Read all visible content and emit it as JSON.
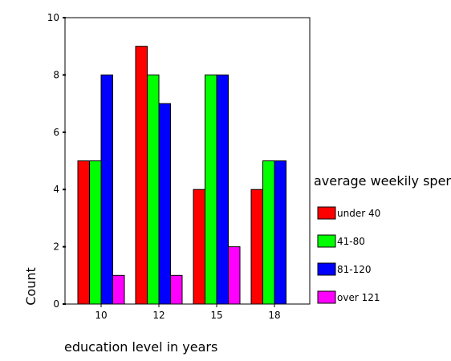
{
  "chart_data": {
    "type": "bar",
    "categories": [
      "10",
      "12",
      "15",
      "18"
    ],
    "series": [
      {
        "name": "under 40",
        "values": [
          5,
          9,
          4,
          4
        ],
        "color": "#ff0000"
      },
      {
        "name": "41-80",
        "values": [
          5,
          8,
          8,
          5
        ],
        "color": "#00ff00"
      },
      {
        "name": "81-120",
        "values": [
          8,
          7,
          8,
          5
        ],
        "color": "#0000ff"
      },
      {
        "name": "over 121",
        "values": [
          1,
          1,
          2,
          0
        ],
        "color": "#ff00ff"
      }
    ],
    "xlabel": "education level in years",
    "ylabel": "Count",
    "ylim": [
      0,
      10
    ],
    "yticks": [
      "0",
      "2",
      "4",
      "6",
      "8",
      "10"
    ],
    "legend_title": "average weekily spen",
    "legend_position": "right",
    "grid": false
  }
}
